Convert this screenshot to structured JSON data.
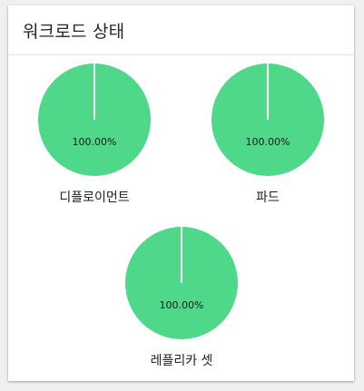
{
  "card": {
    "title": "워크로드 상태"
  },
  "colors": {
    "running": "#4fd88a",
    "divider": "#ffffff"
  },
  "chart_data": [
    {
      "type": "pie",
      "label": "디플로이먼트",
      "values": [
        100.0
      ],
      "value_labels": [
        "100.00%"
      ]
    },
    {
      "type": "pie",
      "label": "파드",
      "values": [
        100.0
      ],
      "value_labels": [
        "100.00%"
      ]
    },
    {
      "type": "pie",
      "label": "레플리카 셋",
      "values": [
        100.0
      ],
      "value_labels": [
        "100.00%"
      ]
    }
  ]
}
